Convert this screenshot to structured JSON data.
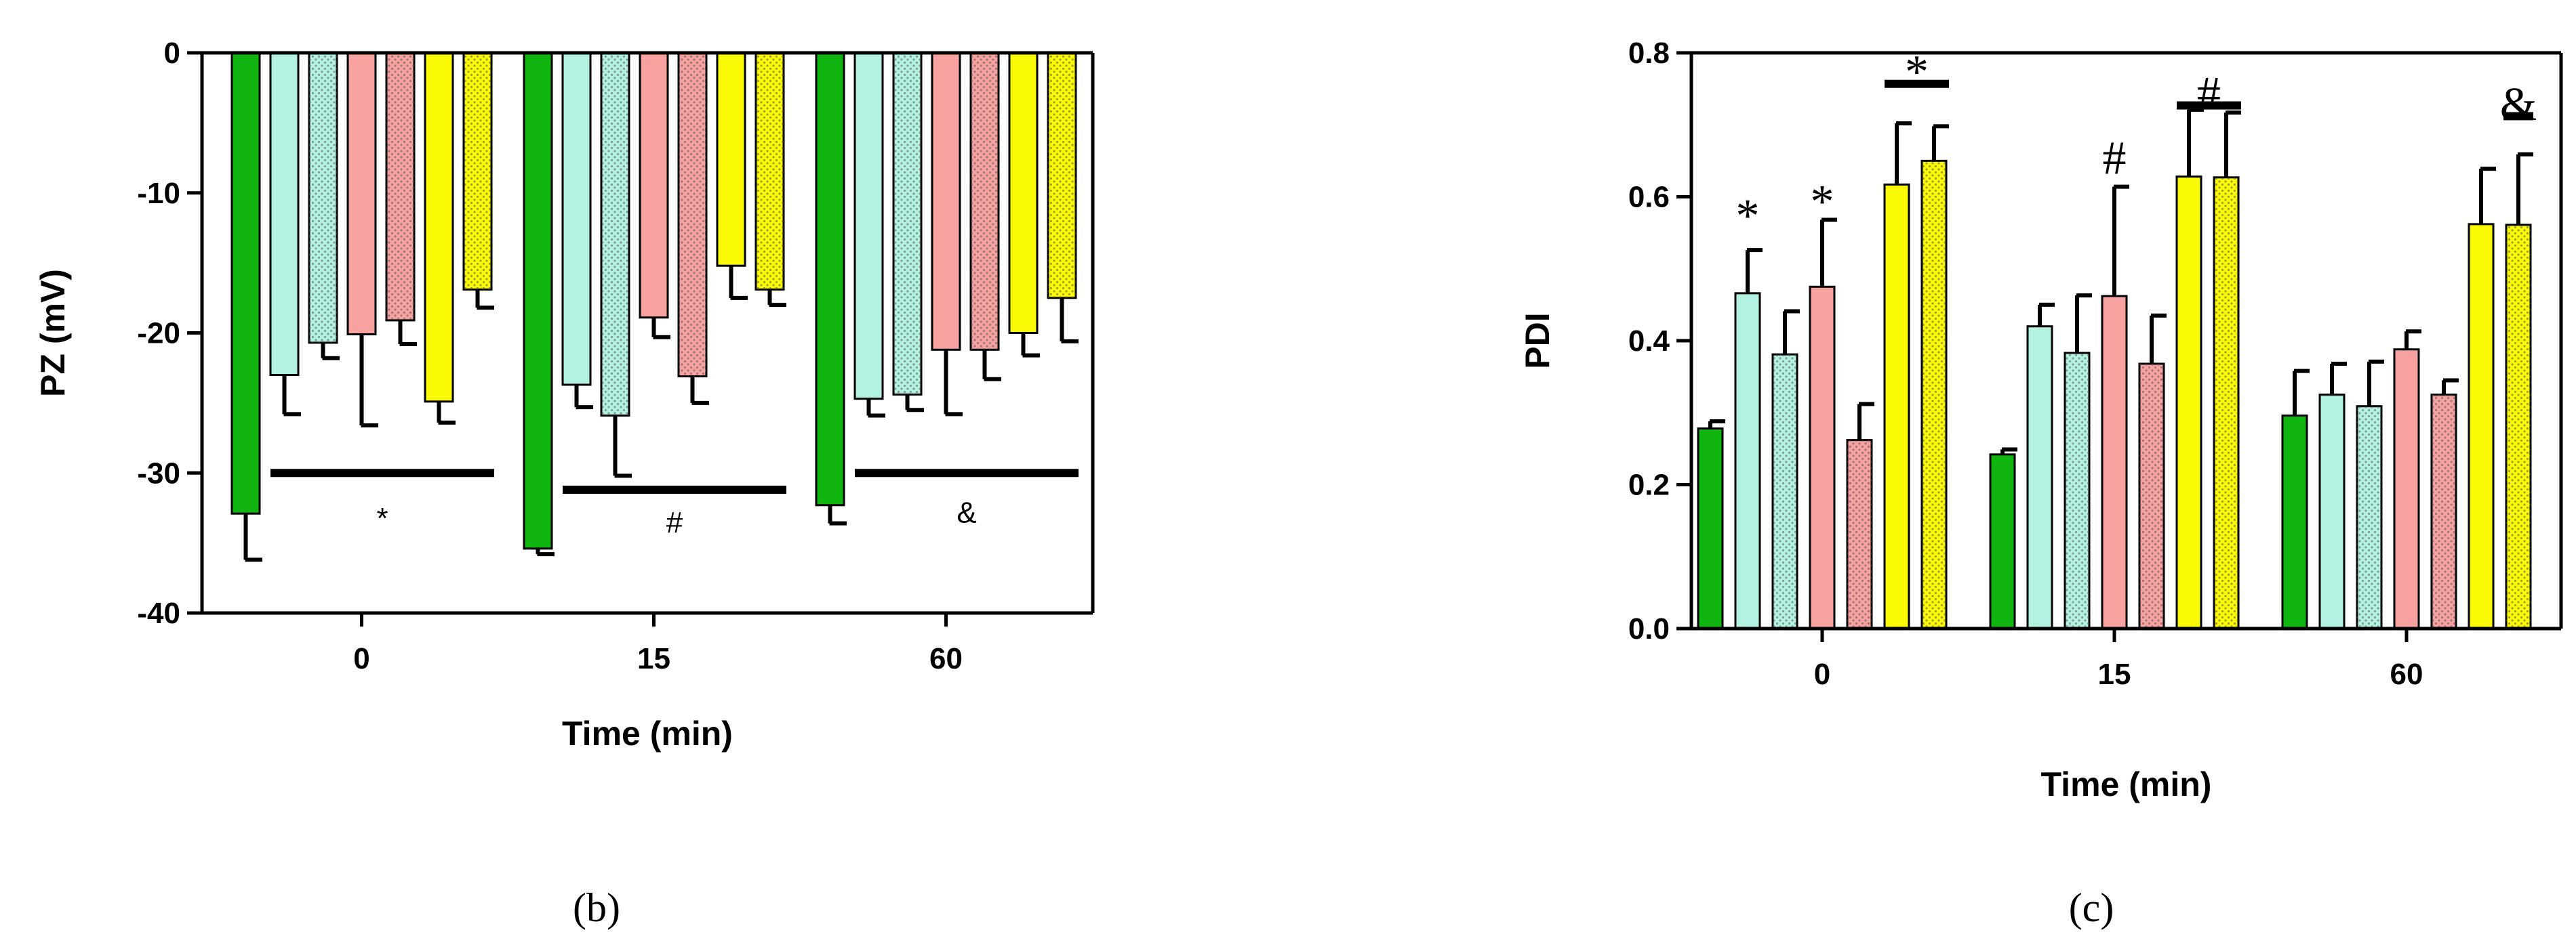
{
  "panels": [
    {
      "id": "b",
      "caption": "(b)",
      "colors": [
        "#10b510",
        "#b3f2e3",
        "#b3f2e3",
        "#f7a1a1",
        "#f7a1a1",
        "#fafa05",
        "#fafa05"
      ],
      "patterns": [
        "solid",
        "solid",
        "dotted",
        "solid",
        "dotted",
        "solid",
        "dotted"
      ],
      "chart_data": {
        "type": "bar",
        "categories": [
          "0",
          "15",
          "60"
        ],
        "xlabel": "Time (min)",
        "ylabel": "PZ (mV)",
        "ylim": [
          -40,
          0
        ],
        "yticks": [
          "0",
          "-10",
          "-20",
          "-30",
          "-40"
        ],
        "series": [
          {
            "values": [
              -32.9,
              -35.4,
              -32.3
            ],
            "errors": [
              3.3,
              0.4,
              1.3
            ]
          },
          {
            "values": [
              -23.0,
              -23.7,
              -24.7
            ],
            "errors": [
              2.8,
              1.6,
              1.2
            ]
          },
          {
            "values": [
              -20.7,
              -25.9,
              -24.4
            ],
            "errors": [
              1.1,
              4.3,
              1.1
            ]
          },
          {
            "values": [
              -20.1,
              -18.9,
              -21.2
            ],
            "errors": [
              6.5,
              1.4,
              4.6
            ]
          },
          {
            "values": [
              -19.1,
              -23.1,
              -21.2
            ],
            "errors": [
              1.7,
              1.9,
              2.1
            ]
          },
          {
            "values": [
              -24.9,
              -15.2,
              -20.0
            ],
            "errors": [
              1.5,
              2.3,
              1.6
            ]
          },
          {
            "values": [
              -16.9,
              -16.9,
              -17.5
            ],
            "errors": [
              1.3,
              1.1,
              3.1
            ]
          }
        ],
        "annotations": [
          {
            "category": "0",
            "symbol": "*",
            "bar_from": 1,
            "bar_to": 6,
            "bar_y": -30.0,
            "label_y": -33.2
          },
          {
            "category": "15",
            "symbol": "#",
            "bar_from": 1,
            "bar_to": 6,
            "bar_y": -31.2,
            "label_y": -33.5
          },
          {
            "category": "60",
            "symbol": "&",
            "bar_from": 1,
            "bar_to": 6,
            "bar_y": -30.0,
            "label_y": -32.8
          }
        ]
      }
    },
    {
      "id": "c",
      "caption": "(c)",
      "colors": [
        "#10b510",
        "#b3f2e3",
        "#b3f2e3",
        "#f7a1a1",
        "#f7a1a1",
        "#fafa05",
        "#fafa05"
      ],
      "patterns": [
        "solid",
        "solid",
        "dotted",
        "solid",
        "dotted",
        "solid",
        "dotted"
      ],
      "chart_data": {
        "type": "bar",
        "categories": [
          "0",
          "15",
          "60"
        ],
        "xlabel": "Time (min)",
        "ylabel": "PDI",
        "ylim": [
          0,
          0.8
        ],
        "yticks": [
          "0.0",
          "0.2",
          "0.4",
          "0.6",
          "0.8"
        ],
        "series": [
          {
            "values": [
              0.278,
              0.242,
              0.296
            ],
            "errors": [
              0.01,
              0.007,
              0.062
            ]
          },
          {
            "values": [
              0.466,
              0.42,
              0.325
            ],
            "errors": [
              0.06,
              0.03,
              0.043
            ]
          },
          {
            "values": [
              0.381,
              0.383,
              0.309
            ],
            "errors": [
              0.06,
              0.08,
              0.062
            ]
          },
          {
            "values": [
              0.475,
              0.462,
              0.388
            ],
            "errors": [
              0.093,
              0.152,
              0.025
            ]
          },
          {
            "values": [
              0.262,
              0.368,
              0.325
            ],
            "errors": [
              0.05,
              0.067,
              0.02
            ]
          },
          {
            "values": [
              0.617,
              0.628,
              0.562
            ],
            "errors": [
              0.085,
              0.093,
              0.077
            ]
          },
          {
            "values": [
              0.65,
              0.627,
              0.561
            ],
            "errors": [
              0.048,
              0.09,
              0.098
            ]
          }
        ],
        "annotations": [
          {
            "category": "0",
            "symbol": "*",
            "over": [
              1
            ],
            "label_y": 0.575
          },
          {
            "category": "0",
            "symbol": "*",
            "over": [
              3
            ],
            "label_y": 0.595
          },
          {
            "category": "0",
            "symbol": "*",
            "bar_from": 5,
            "bar_to": 6,
            "bar_y": 0.757,
            "label_y": 0.775
          },
          {
            "category": "15",
            "symbol": "#",
            "over": [
              3
            ],
            "label_y": 0.655
          },
          {
            "category": "15",
            "symbol": "#",
            "bar_from": 5,
            "bar_to": 6,
            "bar_y": 0.727,
            "label_y": 0.745
          },
          {
            "category": "60",
            "symbol": "&",
            "bar_from": 6,
            "bar_to": 6,
            "bar_y": 0.712,
            "label_y": 0.73
          }
        ]
      }
    }
  ]
}
